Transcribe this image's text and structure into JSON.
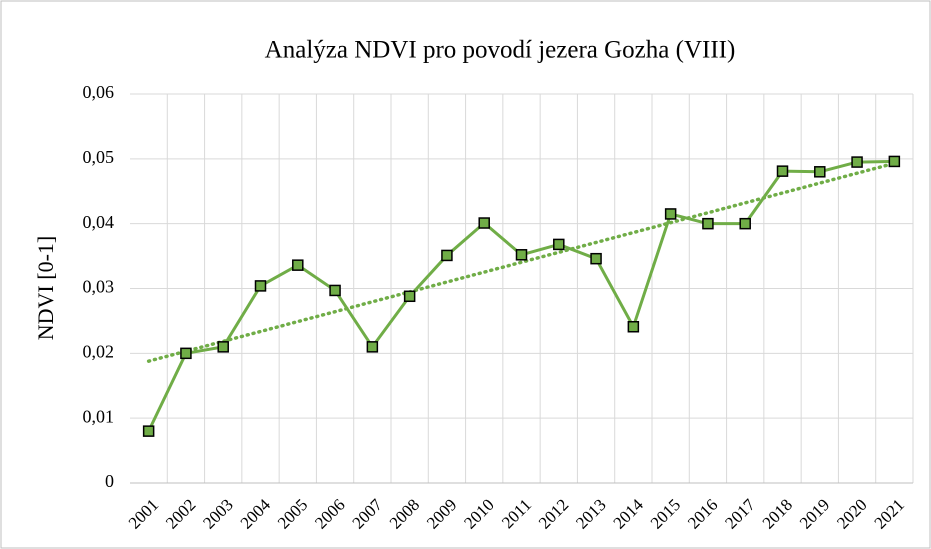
{
  "chart_data": {
    "type": "line",
    "title": "Analýza NDVI pro povodí jezera Gozha (VIII)",
    "y_label": "NDVI [0-1]",
    "categories": [
      "2001",
      "2002",
      "2003",
      "2004",
      "2005",
      "2006",
      "2007",
      "2008",
      "2009",
      "2010",
      "2011",
      "2012",
      "2013",
      "2014",
      "2015",
      "2016",
      "2017",
      "2018",
      "2019",
      "2020",
      "2021"
    ],
    "series": [
      {
        "name": "NDVI",
        "color": "#70ad47",
        "values": [
          0.008,
          0.02,
          0.021,
          0.0304,
          0.0336,
          0.0297,
          0.021,
          0.0288,
          0.0351,
          0.0401,
          0.0352,
          0.0368,
          0.0346,
          0.0241,
          0.0415,
          0.04,
          0.04,
          0.0481,
          0.048,
          0.0495,
          0.0496
        ]
      }
    ],
    "trendline": "linear",
    "ylim": [
      0,
      0.06
    ],
    "yticks": [
      0,
      {
        "value": 0.01,
        "label": "0,01"
      },
      {
        "value": 0.02,
        "label": "0,02"
      },
      {
        "value": 0.03,
        "label": "0,03"
      },
      {
        "value": 0.04,
        "label": "0,04"
      },
      {
        "value": 0.05,
        "label": "0,05"
      },
      {
        "value": 0.06,
        "label": "0,06"
      }
    ],
    "grid": true
  }
}
